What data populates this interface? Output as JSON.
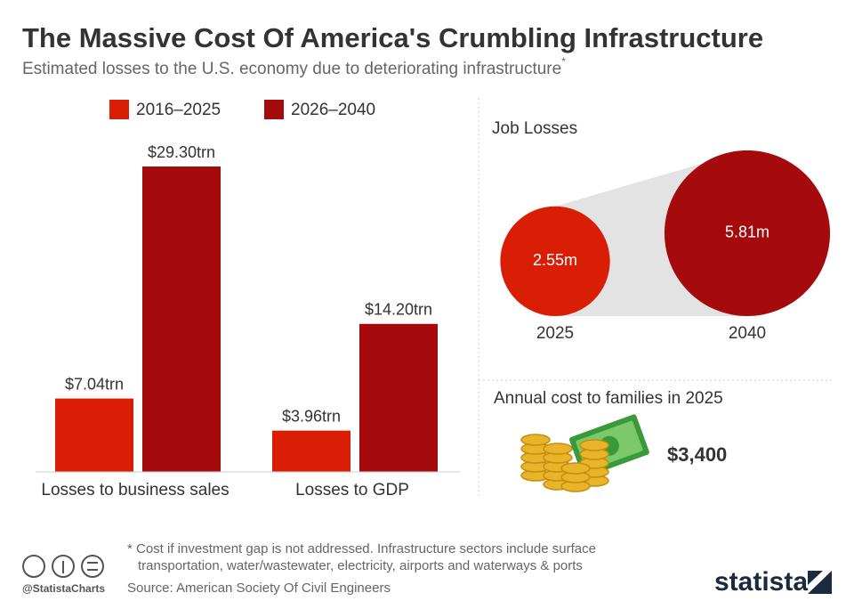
{
  "title": "The Massive Cost Of America's Crumbling Infrastructure",
  "subtitle": "Estimated losses to the U.S. economy due to deteriorating infrastructure",
  "subtitle_marker": "*",
  "chart_data": [
    {
      "type": "bar",
      "categories": [
        "Losses to business sales",
        "Losses to GDP"
      ],
      "series": [
        {
          "name": "2016–2025",
          "color": "#d91e05",
          "values": [
            7.04,
            3.96
          ],
          "value_labels": [
            "$7.04trn",
            "$3.96trn"
          ]
        },
        {
          "name": "2026–2040",
          "color": "#a50b0d",
          "values": [
            29.3,
            14.2
          ],
          "value_labels": [
            "$29.30trn",
            "$14.20trn"
          ]
        }
      ]
    },
    {
      "type": "bubble",
      "title": "Job Losses",
      "categories": [
        "2025",
        "2040"
      ],
      "values": [
        2.55,
        5.81
      ],
      "value_labels": [
        "2.55m",
        "5.81m"
      ],
      "colors": [
        "#d91e05",
        "#a50b0d"
      ]
    }
  ],
  "cost": {
    "label": "Annual cost to families in 2025",
    "value": "$3,400"
  },
  "footnote": [
    "* Cost if investment gap is not addressed. Infrastructure sectors include surface",
    "transportation, water/wastewater, electricity, airports and waterways & ports"
  ],
  "source": "Source: American Society Of Civil Engineers",
  "handle": "@StatistaCharts",
  "brand": "statista"
}
